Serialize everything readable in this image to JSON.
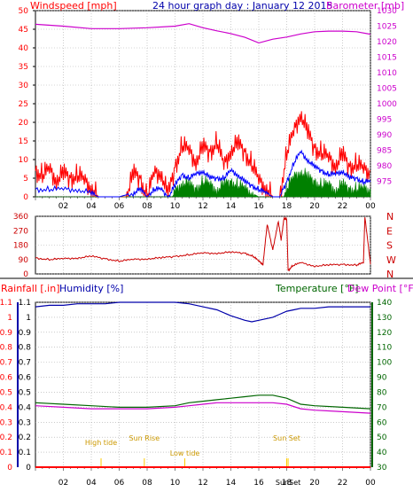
{
  "header": {
    "left": "Windspeed [mph]",
    "center": "24 hour graph day : January 12 2015",
    "right": "Barometer [mb]"
  },
  "colors": {
    "windspeed": "#ff0000",
    "gust": "#ff0000",
    "avg_wind": "#0000ff",
    "wind_green": "#008000",
    "barometer": "#cc00cc",
    "direction": "#cc0000",
    "humidity": "#0000aa",
    "temperature": "#006600",
    "dewpoint": "#cc00cc",
    "rain": "#ff0000",
    "sun": "#ffcc00",
    "grid": "#aaaaaa"
  },
  "chart_data": [
    {
      "type": "line",
      "panel": "wind_pressure",
      "x_unit": "hour",
      "x_ticks": [
        "02",
        "04",
        "06",
        "08",
        "10",
        "12",
        "14",
        "16",
        "18",
        "20",
        "22",
        "00"
      ],
      "ylabel_left": "Windspeed [mph]",
      "ylim_left": [
        0,
        50
      ],
      "yticks_left": [
        "0",
        "5",
        "10",
        "15",
        "20",
        "25",
        "30",
        "35",
        "40",
        "45",
        "50"
      ],
      "ylabel_right": "Barometer [mb]",
      "ylim_right": [
        970,
        1030
      ],
      "yticks_right": [
        "975",
        "980",
        "985",
        "990",
        "995",
        "1000",
        "1005",
        "1010",
        "1015",
        "1020",
        "1025",
        "1030"
      ],
      "series": [
        {
          "name": "Windspeed",
          "x": [
            0,
            0.5,
            1,
            1.5,
            2,
            2.5,
            3,
            3.5,
            4,
            4.5,
            5,
            5.5,
            6,
            6.5,
            7,
            7.5,
            8,
            8.5,
            9,
            9.5,
            10,
            10.5,
            11,
            11.5,
            12,
            12.5,
            13,
            13.5,
            14,
            14.5,
            15,
            15.5,
            16,
            16.5,
            17,
            17.5,
            18,
            18.5,
            19,
            19.5,
            20,
            20.5,
            21,
            21.5,
            22,
            22.5,
            23,
            23.5,
            24
          ],
          "values": [
            7,
            6,
            7,
            5,
            6,
            5,
            6,
            4,
            3,
            0,
            0,
            0,
            0,
            0,
            6,
            5,
            0,
            6,
            7,
            0,
            8,
            14,
            12,
            10,
            13,
            12,
            15,
            8,
            13,
            14,
            12,
            9,
            4,
            3,
            0,
            0,
            12,
            17,
            23,
            17,
            13,
            12,
            10,
            9,
            11,
            8,
            9,
            7,
            7
          ]
        },
        {
          "name": "Average",
          "x": [
            0,
            1,
            2,
            3,
            4,
            4.5,
            5,
            6,
            7,
            7.5,
            8,
            8.5,
            9,
            9.5,
            10,
            10.5,
            11,
            11.5,
            12,
            12.5,
            13,
            13.5,
            14,
            14.5,
            15,
            15.5,
            16,
            16.5,
            17,
            17.5,
            18,
            18.5,
            19,
            19.5,
            20,
            20.5,
            21,
            21.5,
            22,
            22.5,
            23,
            23.5,
            24
          ],
          "values": [
            2,
            2,
            2,
            2,
            1,
            0,
            0,
            0,
            1,
            2,
            0,
            2,
            2,
            0,
            3,
            6,
            5,
            6,
            7,
            5,
            5,
            5,
            7,
            6,
            4,
            3,
            2,
            1,
            0,
            0,
            4,
            9,
            12,
            10,
            8,
            7,
            6,
            6,
            7,
            5,
            5,
            4,
            4
          ]
        },
        {
          "name": "Wind green",
          "x": [
            0,
            9.8,
            10,
            10.5,
            11,
            11.5,
            12,
            12.5,
            13,
            13.5,
            14,
            14.5,
            15,
            15.5,
            16,
            17.8,
            18,
            18.5,
            19,
            19.5,
            20,
            20.5,
            21,
            21.5,
            22,
            22.5,
            23,
            23.5,
            24
          ],
          "values": [
            0,
            0,
            1,
            4,
            3,
            2,
            4,
            3,
            2,
            3,
            4,
            3,
            2,
            1,
            0,
            0,
            2,
            5,
            7,
            5,
            4,
            3,
            3,
            2,
            3,
            2,
            2,
            2,
            2
          ]
        },
        {
          "name": "Barometer",
          "x": [
            0,
            2,
            4,
            6,
            8,
            10,
            11,
            12,
            13,
            14,
            15,
            16,
            17,
            18,
            19,
            20,
            21,
            22,
            23,
            24
          ],
          "values": [
            1025.6,
            1025,
            1024.2,
            1024.2,
            1024.5,
            1025,
            1025.8,
            1024.5,
            1023.5,
            1022.6,
            1021.4,
            1019.6,
            1020.8,
            1021.5,
            1022.5,
            1023.2,
            1023.4,
            1023.4,
            1023.2,
            1022.4
          ]
        }
      ]
    },
    {
      "type": "line",
      "panel": "direction",
      "ylim": [
        0,
        360
      ],
      "yticks": [
        "0",
        "90",
        "180",
        "270",
        "360"
      ],
      "yticks_right": [
        "N",
        "W",
        "S",
        "E",
        "N"
      ],
      "series": [
        {
          "name": "Direction",
          "x": [
            0,
            1,
            2,
            3,
            4,
            5,
            6,
            7,
            8,
            9,
            10,
            11,
            12,
            13,
            14,
            15,
            15.6,
            16,
            16.3,
            16.6,
            17,
            17.4,
            17.6,
            17.8,
            18.0,
            18.1,
            18.4,
            19,
            20,
            21,
            22,
            23,
            23.5,
            23.6,
            24
          ],
          "values": [
            100,
            90,
            95,
            100,
            110,
            95,
            80,
            90,
            95,
            100,
            110,
            120,
            130,
            130,
            135,
            130,
            110,
            80,
            60,
            310,
            150,
            330,
            210,
            350,
            340,
            20,
            50,
            70,
            50,
            55,
            60,
            55,
            70,
            360,
            60
          ]
        }
      ]
    },
    {
      "type": "line",
      "panel": "temperature_humidity",
      "header_labels": {
        "rainfall": "Rainfall [.in]",
        "humidity": "Humidity [%]",
        "temperature": "Temperature [°F]",
        "dewpoint": "Dew Point [°F]"
      },
      "yticks_rain": [
        "0",
        "0.1",
        "0.2",
        "0.3",
        "0.4",
        "0.5",
        "0.6",
        "0.7",
        "0.8",
        "0.9",
        "1",
        "1.1"
      ],
      "yticks_temp": [
        "30",
        "40",
        "50",
        "60",
        "70",
        "80",
        "90",
        "100",
        "110",
        "120",
        "130",
        "140"
      ],
      "ylim_rain": [
        0,
        1.1
      ],
      "ylim_temp": [
        30,
        140
      ],
      "series": [
        {
          "name": "Humidity",
          "x": [
            0,
            1,
            2,
            3,
            4,
            5,
            6,
            7,
            8,
            9,
            10,
            11,
            12,
            13,
            14,
            15,
            15.5,
            16,
            17,
            17.5,
            18,
            18.5,
            19,
            20,
            21,
            22,
            23,
            24
          ],
          "values": [
            137,
            138,
            138,
            139,
            139,
            139,
            140,
            140,
            140,
            140,
            140,
            139,
            137,
            135,
            131,
            128,
            127,
            128,
            130,
            132,
            134,
            135,
            136,
            136,
            137,
            137,
            137,
            137
          ]
        },
        {
          "name": "Temperature",
          "x": [
            0,
            2,
            4,
            6,
            8,
            10,
            11,
            12,
            13,
            14,
            15,
            16,
            17,
            18,
            19,
            20,
            22,
            24
          ],
          "values": [
            73,
            72,
            71,
            70,
            70,
            71,
            73,
            74,
            75,
            76,
            77,
            78,
            78,
            76,
            72,
            71,
            70,
            69
          ]
        },
        {
          "name": "Dew Point",
          "x": [
            0,
            2,
            4,
            6,
            8,
            10,
            11,
            12,
            13,
            14,
            15,
            16,
            17,
            18,
            19,
            20,
            22,
            24
          ],
          "values": [
            71,
            70,
            69,
            69,
            69,
            70,
            71,
            72,
            73,
            73,
            73,
            73,
            73,
            72,
            69,
            68,
            67,
            66
          ]
        },
        {
          "name": "Rainfall",
          "x": [
            0,
            24
          ],
          "values": [
            0,
            0
          ]
        }
      ],
      "annotations": [
        {
          "label": "High tide",
          "x": 4.7
        },
        {
          "label": "Sun Rise",
          "x": 7.8
        },
        {
          "label": "Low tide",
          "x": 10.7
        },
        {
          "label": "Sun Set",
          "x": 18.0
        },
        {
          "label": "SunSet",
          "x": 18.1
        }
      ]
    }
  ]
}
